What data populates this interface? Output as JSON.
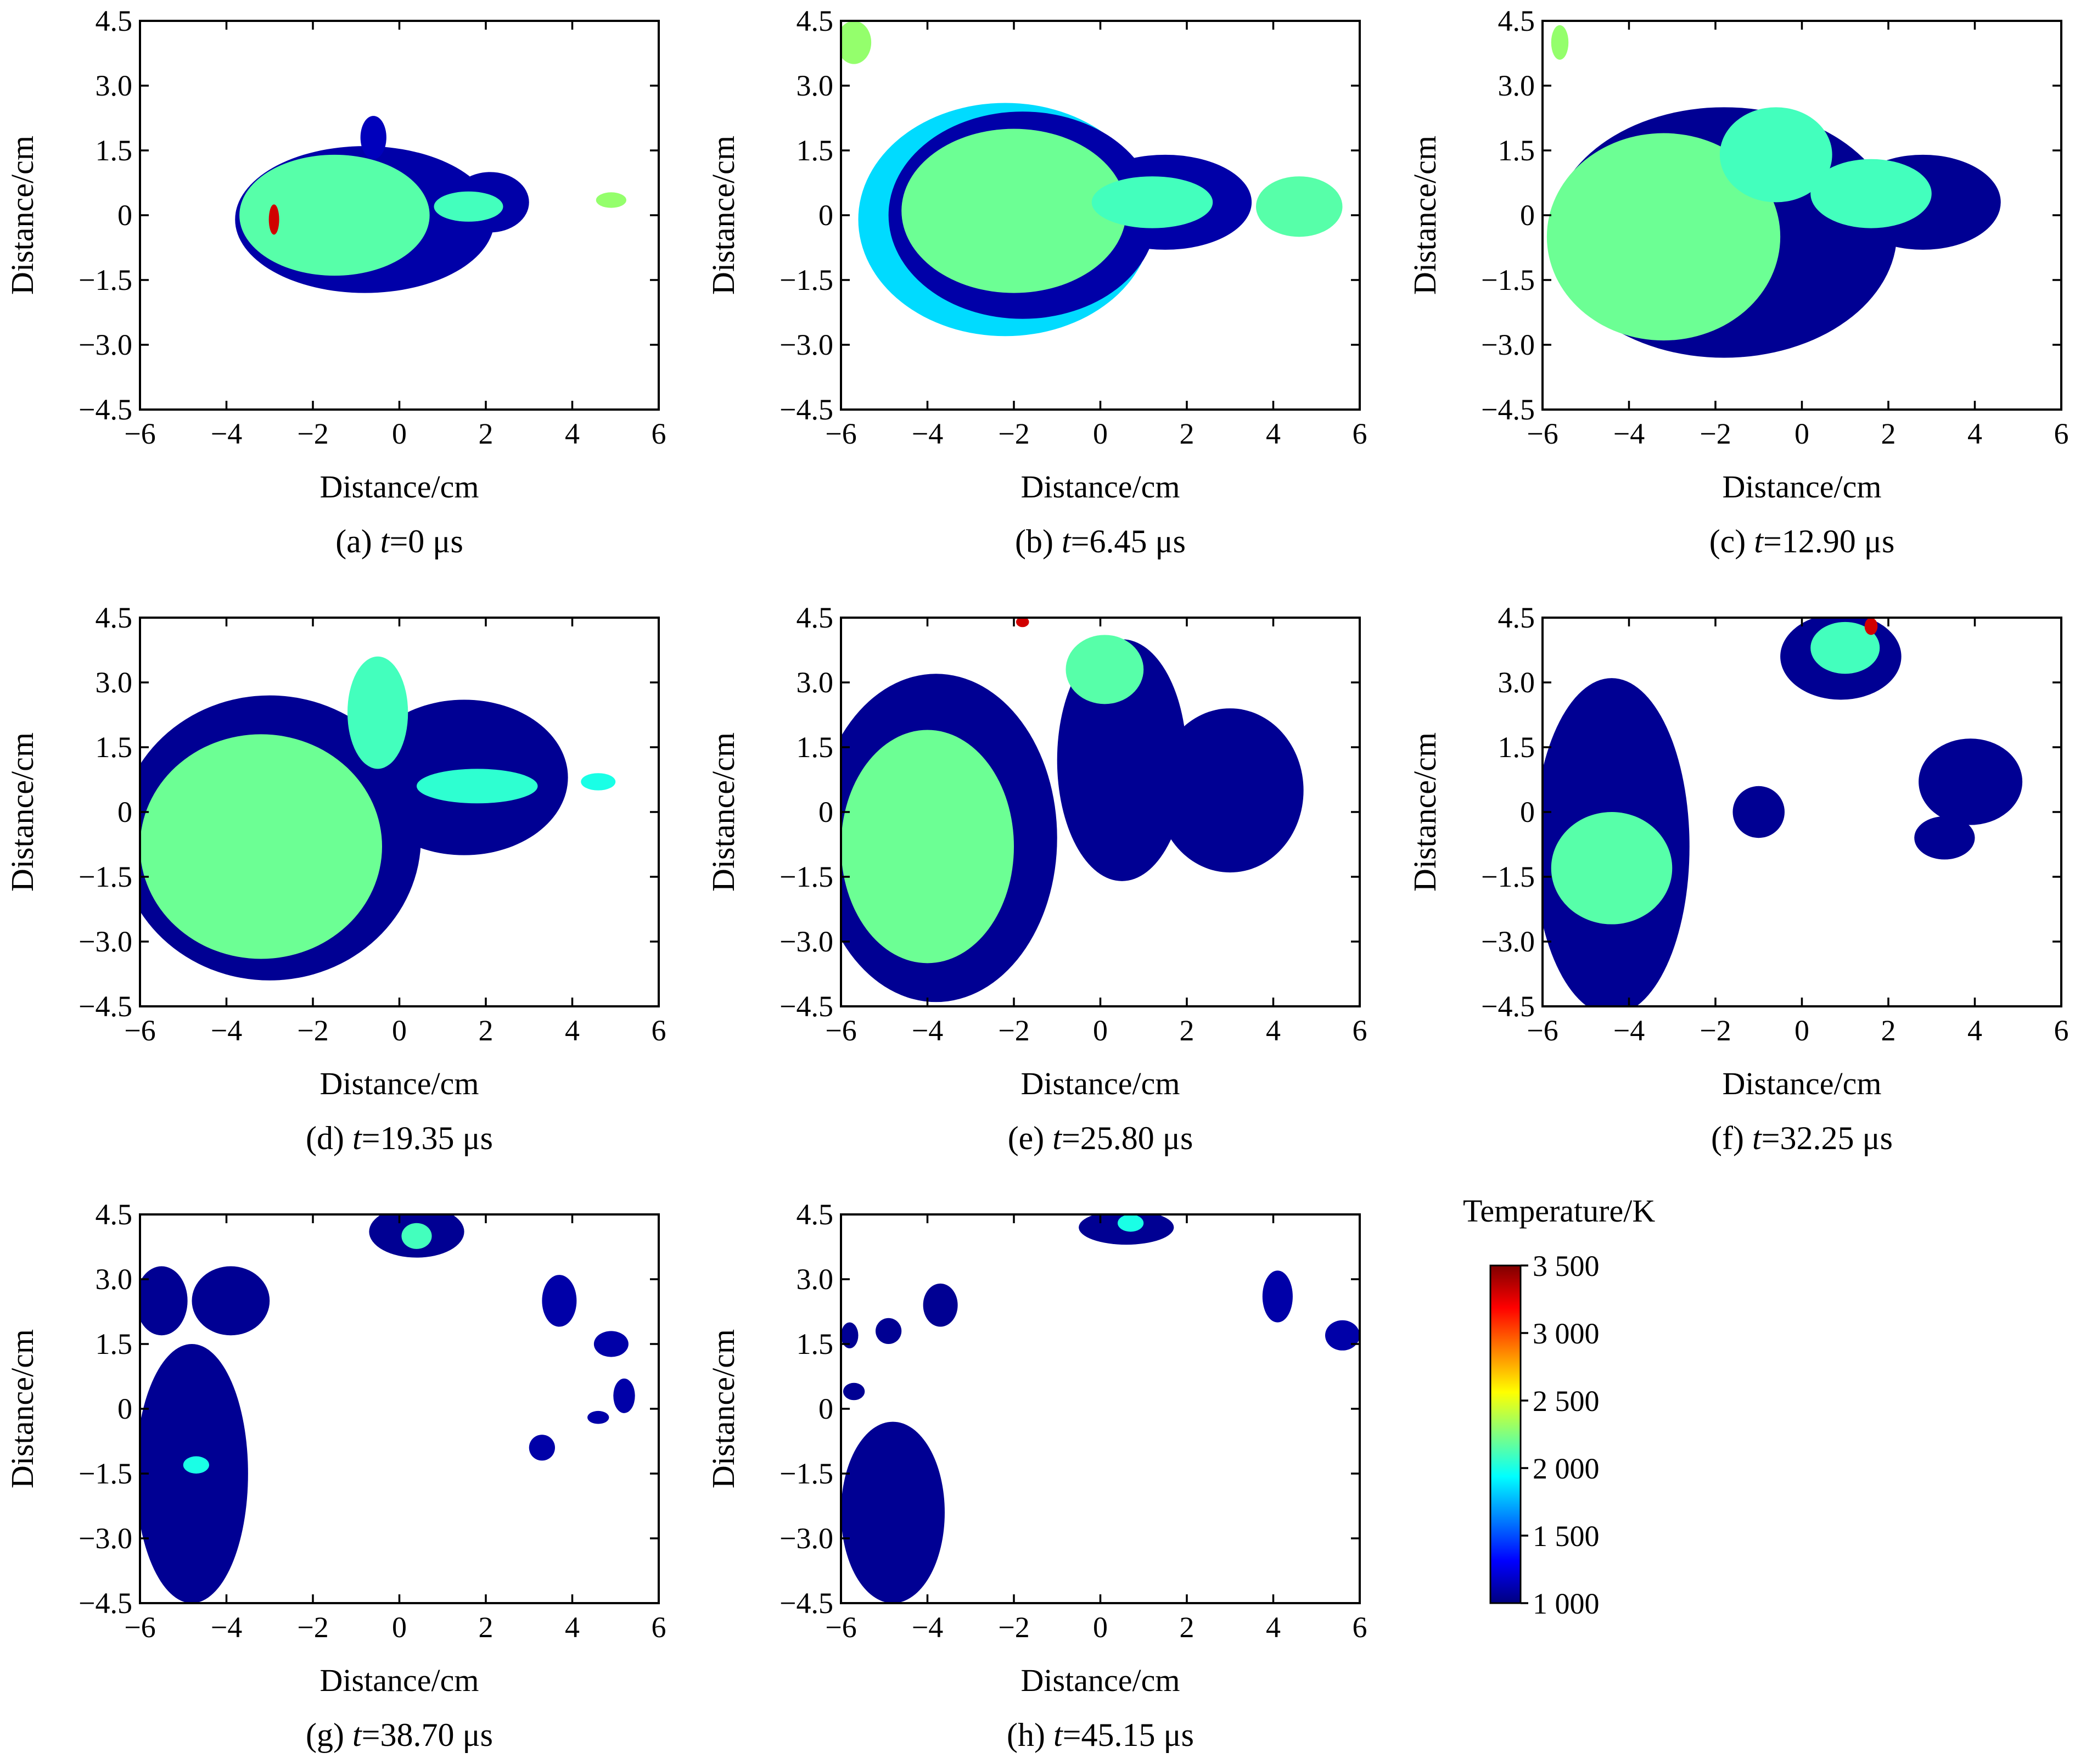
{
  "chart_data": [
    {
      "type": "heatmap",
      "caption_prefix": "(a) ",
      "caption_t": "t",
      "caption_rest": "=0 μs",
      "xlabel": "Distance/cm",
      "ylabel": "Distance/cm",
      "xlim": [
        -6,
        6
      ],
      "ylim": [
        -4.5,
        4.5
      ],
      "xticks": [
        "−6",
        "−4",
        "−2",
        "0",
        "2",
        "4",
        "6"
      ],
      "yticks": [
        "−4.5",
        "−3.0",
        "−1.5",
        "0",
        "1.5",
        "3.0",
        "4.5"
      ],
      "regions": [
        {
          "level": 1100,
          "x": -0.8,
          "y": -0.1,
          "rx": 3.0,
          "ry": 1.7
        },
        {
          "level": 1100,
          "x": 2.1,
          "y": 0.3,
          "rx": 0.9,
          "ry": 0.7
        },
        {
          "level": 1150,
          "x": -0.6,
          "y": 1.8,
          "rx": 0.3,
          "ry": 0.5
        },
        {
          "level": 2150,
          "x": -1.5,
          "y": 0.0,
          "rx": 2.2,
          "ry": 1.4
        },
        {
          "level": 2100,
          "x": 1.6,
          "y": 0.2,
          "rx": 0.8,
          "ry": 0.35
        },
        {
          "level": 2300,
          "x": 4.9,
          "y": 0.35,
          "rx": 0.35,
          "ry": 0.18
        },
        {
          "level": 3300,
          "x": -2.9,
          "y": -0.1,
          "rx": 0.12,
          "ry": 0.35
        }
      ]
    },
    {
      "type": "heatmap",
      "caption_prefix": "(b) ",
      "caption_t": "t",
      "caption_rest": "=6.45 μs",
      "xlabel": "Distance/cm",
      "ylabel": "Distance/cm",
      "xlim": [
        -6,
        6
      ],
      "ylim": [
        -4.5,
        4.5
      ],
      "xticks": [
        "−6",
        "−4",
        "−2",
        "0",
        "2",
        "4",
        "6"
      ],
      "yticks": [
        "−4.5",
        "−3.0",
        "−1.5",
        "0",
        "1.5",
        "3.0",
        "4.5"
      ],
      "regions": [
        {
          "level": 1850,
          "x": -2.2,
          "y": -0.1,
          "rx": 3.4,
          "ry": 2.7
        },
        {
          "level": 1100,
          "x": -1.8,
          "y": 0.0,
          "rx": 3.1,
          "ry": 2.4
        },
        {
          "level": 1100,
          "x": 1.5,
          "y": 0.3,
          "rx": 2.0,
          "ry": 1.1
        },
        {
          "level": 2200,
          "x": -2.0,
          "y": 0.1,
          "rx": 2.6,
          "ry": 1.9
        },
        {
          "level": 2100,
          "x": 1.2,
          "y": 0.3,
          "rx": 1.4,
          "ry": 0.6
        },
        {
          "level": 2150,
          "x": 4.6,
          "y": 0.2,
          "rx": 1.0,
          "ry": 0.7
        },
        {
          "level": 2300,
          "x": -5.7,
          "y": 4.0,
          "rx": 0.4,
          "ry": 0.5
        }
      ]
    },
    {
      "type": "heatmap",
      "caption_prefix": "(c) ",
      "caption_t": "t",
      "caption_rest": "=12.90 μs",
      "xlabel": "Distance/cm",
      "ylabel": "Distance/cm",
      "xlim": [
        -6,
        6
      ],
      "ylim": [
        -4.5,
        4.5
      ],
      "xticks": [
        "−6",
        "−4",
        "−2",
        "0",
        "2",
        "4",
        "6"
      ],
      "yticks": [
        "−4.5",
        "−3.0",
        "−1.5",
        "0",
        "1.5",
        "3.0",
        "4.5"
      ],
      "regions": [
        {
          "level": 1050,
          "x": -1.8,
          "y": -0.4,
          "rx": 4.0,
          "ry": 2.9
        },
        {
          "level": 1050,
          "x": 2.8,
          "y": 0.3,
          "rx": 1.8,
          "ry": 1.1
        },
        {
          "level": 2200,
          "x": -3.2,
          "y": -0.5,
          "rx": 2.7,
          "ry": 2.4
        },
        {
          "level": 2100,
          "x": -0.6,
          "y": 1.4,
          "rx": 1.3,
          "ry": 1.1
        },
        {
          "level": 2100,
          "x": 1.6,
          "y": 0.5,
          "rx": 1.4,
          "ry": 0.8
        },
        {
          "level": 2300,
          "x": -5.6,
          "y": 4.0,
          "rx": 0.2,
          "ry": 0.4
        }
      ]
    },
    {
      "type": "heatmap",
      "caption_prefix": "(d) ",
      "caption_t": "t",
      "caption_rest": "=19.35 μs",
      "xlabel": "Distance/cm",
      "ylabel": "Distance/cm",
      "xlim": [
        -6,
        6
      ],
      "ylim": [
        -4.5,
        4.5
      ],
      "xticks": [
        "−6",
        "−4",
        "−2",
        "0",
        "2",
        "4",
        "6"
      ],
      "yticks": [
        "−4.5",
        "−3.0",
        "−1.5",
        "0",
        "1.5",
        "3.0",
        "4.5"
      ],
      "regions": [
        {
          "level": 1050,
          "x": -3.0,
          "y": -0.6,
          "rx": 3.5,
          "ry": 3.3
        },
        {
          "level": 1050,
          "x": 1.5,
          "y": 0.8,
          "rx": 2.4,
          "ry": 1.8
        },
        {
          "level": 2200,
          "x": -3.2,
          "y": -0.8,
          "rx": 2.8,
          "ry": 2.6
        },
        {
          "level": 2100,
          "x": -0.5,
          "y": 2.3,
          "rx": 0.7,
          "ry": 1.3
        },
        {
          "level": 2050,
          "x": 1.8,
          "y": 0.6,
          "rx": 1.4,
          "ry": 0.4
        },
        {
          "level": 2000,
          "x": 4.6,
          "y": 0.7,
          "rx": 0.4,
          "ry": 0.2
        }
      ]
    },
    {
      "type": "heatmap",
      "caption_prefix": "(e) ",
      "caption_t": "t",
      "caption_rest": "=25.80 μs",
      "xlabel": "Distance/cm",
      "ylabel": "Distance/cm",
      "xlim": [
        -6,
        6
      ],
      "ylim": [
        -4.5,
        4.5
      ],
      "xticks": [
        "−6",
        "−4",
        "−2",
        "0",
        "2",
        "4",
        "6"
      ],
      "yticks": [
        "−4.5",
        "−3.0",
        "−1.5",
        "0",
        "1.5",
        "3.0",
        "4.5"
      ],
      "regions": [
        {
          "level": 1050,
          "x": -3.8,
          "y": -0.6,
          "rx": 2.8,
          "ry": 3.8
        },
        {
          "level": 1050,
          "x": 3.0,
          "y": 0.5,
          "rx": 1.7,
          "ry": 1.9
        },
        {
          "level": 1050,
          "x": 0.5,
          "y": 1.2,
          "rx": 1.5,
          "ry": 2.8
        },
        {
          "level": 2200,
          "x": -4.0,
          "y": -0.8,
          "rx": 2.0,
          "ry": 2.7
        },
        {
          "level": 2150,
          "x": 0.1,
          "y": 3.3,
          "rx": 0.9,
          "ry": 0.8
        },
        {
          "level": 3300,
          "x": -1.8,
          "y": 4.4,
          "rx": 0.15,
          "ry": 0.12
        }
      ]
    },
    {
      "type": "heatmap",
      "caption_prefix": "(f) ",
      "caption_t": "t",
      "caption_rest": "=32.25 μs",
      "xlabel": "Distance/cm",
      "ylabel": "Distance/cm",
      "xlim": [
        -6,
        6
      ],
      "ylim": [
        -4.5,
        4.5
      ],
      "xticks": [
        "−6",
        "−4",
        "−2",
        "0",
        "2",
        "4",
        "6"
      ],
      "yticks": [
        "−4.5",
        "−3.0",
        "−1.5",
        "0",
        "1.5",
        "3.0",
        "4.5"
      ],
      "regions": [
        {
          "level": 1050,
          "x": -4.4,
          "y": -0.8,
          "rx": 1.8,
          "ry": 3.9
        },
        {
          "level": 1050,
          "x": 0.9,
          "y": 3.6,
          "rx": 1.4,
          "ry": 1.0
        },
        {
          "level": 1050,
          "x": 3.9,
          "y": 0.7,
          "rx": 1.2,
          "ry": 1.0
        },
        {
          "level": 1050,
          "x": 3.3,
          "y": -0.6,
          "rx": 0.7,
          "ry": 0.5
        },
        {
          "level": 1050,
          "x": -1.0,
          "y": 0.0,
          "rx": 0.6,
          "ry": 0.6
        },
        {
          "level": 2150,
          "x": -4.4,
          "y": -1.3,
          "rx": 1.4,
          "ry": 1.3
        },
        {
          "level": 2100,
          "x": 1.0,
          "y": 3.8,
          "rx": 0.8,
          "ry": 0.6
        },
        {
          "level": 3300,
          "x": 1.6,
          "y": 4.3,
          "rx": 0.15,
          "ry": 0.2
        }
      ]
    },
    {
      "type": "heatmap",
      "caption_prefix": "(g) ",
      "caption_t": "t",
      "caption_rest": "=38.70 μs",
      "xlabel": "Distance/cm",
      "ylabel": "Distance/cm",
      "xlim": [
        -6,
        6
      ],
      "ylim": [
        -4.5,
        4.5
      ],
      "xticks": [
        "−6",
        "−4",
        "−2",
        "0",
        "2",
        "4",
        "6"
      ],
      "yticks": [
        "−4.5",
        "−3.0",
        "−1.5",
        "0",
        "1.5",
        "3.0",
        "4.5"
      ],
      "regions": [
        {
          "level": 1050,
          "x": -4.8,
          "y": -1.5,
          "rx": 1.3,
          "ry": 3.0
        },
        {
          "level": 1050,
          "x": -3.9,
          "y": 2.5,
          "rx": 0.9,
          "ry": 0.8
        },
        {
          "level": 1050,
          "x": -5.5,
          "y": 2.5,
          "rx": 0.6,
          "ry": 0.8
        },
        {
          "level": 1050,
          "x": 0.4,
          "y": 4.1,
          "rx": 1.1,
          "ry": 0.6
        },
        {
          "level": 1100,
          "x": 3.7,
          "y": 2.5,
          "rx": 0.4,
          "ry": 0.6
        },
        {
          "level": 1100,
          "x": 4.9,
          "y": 1.5,
          "rx": 0.4,
          "ry": 0.3
        },
        {
          "level": 1100,
          "x": 5.2,
          "y": 0.3,
          "rx": 0.25,
          "ry": 0.4
        },
        {
          "level": 1100,
          "x": 3.3,
          "y": -0.9,
          "rx": 0.3,
          "ry": 0.3
        },
        {
          "level": 1100,
          "x": 4.6,
          "y": -0.2,
          "rx": 0.25,
          "ry": 0.15
        },
        {
          "level": 2100,
          "x": 0.4,
          "y": 4.0,
          "rx": 0.35,
          "ry": 0.3
        },
        {
          "level": 2000,
          "x": -4.7,
          "y": -1.3,
          "rx": 0.3,
          "ry": 0.2
        }
      ]
    },
    {
      "type": "heatmap",
      "caption_prefix": "(h) ",
      "caption_t": "t",
      "caption_rest": "=45.15 μs",
      "xlabel": "Distance/cm",
      "ylabel": "Distance/cm",
      "xlim": [
        -6,
        6
      ],
      "ylim": [
        -4.5,
        4.5
      ],
      "xticks": [
        "−6",
        "−4",
        "−2",
        "0",
        "2",
        "4",
        "6"
      ],
      "yticks": [
        "−4.5",
        "−3.0",
        "−1.5",
        "0",
        "1.5",
        "3.0",
        "4.5"
      ],
      "regions": [
        {
          "level": 1050,
          "x": -4.8,
          "y": -2.4,
          "rx": 1.2,
          "ry": 2.1
        },
        {
          "level": 1050,
          "x": -3.7,
          "y": 2.4,
          "rx": 0.4,
          "ry": 0.5
        },
        {
          "level": 1050,
          "x": -4.9,
          "y": 1.8,
          "rx": 0.3,
          "ry": 0.3
        },
        {
          "level": 1050,
          "x": -5.8,
          "y": 1.7,
          "rx": 0.2,
          "ry": 0.3
        },
        {
          "level": 1050,
          "x": -5.7,
          "y": 0.4,
          "rx": 0.25,
          "ry": 0.2
        },
        {
          "level": 1050,
          "x": 0.6,
          "y": 4.2,
          "rx": 1.1,
          "ry": 0.4
        },
        {
          "level": 1100,
          "x": 4.1,
          "y": 2.6,
          "rx": 0.35,
          "ry": 0.6
        },
        {
          "level": 1100,
          "x": 5.6,
          "y": 1.7,
          "rx": 0.4,
          "ry": 0.35
        },
        {
          "level": 2000,
          "x": 0.7,
          "y": 4.3,
          "rx": 0.3,
          "ry": 0.2
        }
      ]
    }
  ],
  "colorbar": {
    "title": "Temperature/K",
    "min": 1000,
    "max": 3500,
    "tick_labels": [
      "3 500",
      "3 000",
      "2 500",
      "2 000",
      "1 500",
      "1 000"
    ],
    "tick_values": [
      3500,
      3000,
      2500,
      2000,
      1500,
      1000
    ],
    "colormap": "jet",
    "stops": [
      "#00007f",
      "#0000ff",
      "#0080ff",
      "#00ffff",
      "#80ff80",
      "#ffff00",
      "#ff8000",
      "#ff0000",
      "#7f0000"
    ]
  }
}
